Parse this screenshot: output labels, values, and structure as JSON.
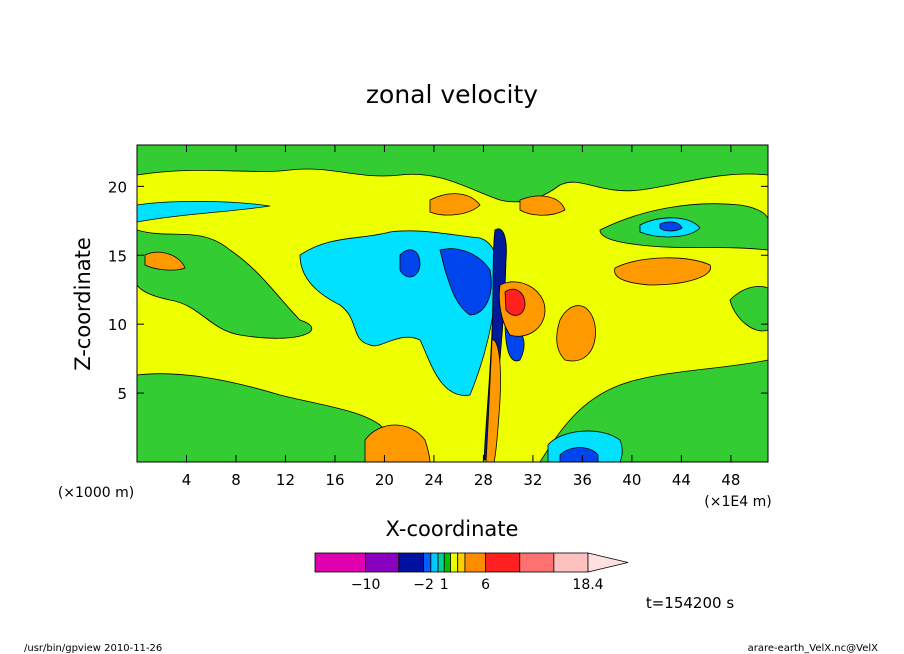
{
  "chart_data": {
    "type": "heatmap",
    "title": "zonal velocity",
    "xlabel": "X-coordinate",
    "ylabel": "Z-coordinate",
    "x_unit": "(×1E4 m)",
    "y_unit": "(×1000 m)",
    "x_ticks": [
      "4",
      "8",
      "12",
      "16",
      "20",
      "24",
      "28",
      "32",
      "36",
      "40",
      "44",
      "48"
    ],
    "x_tick_values": [
      4,
      8,
      12,
      16,
      20,
      24,
      28,
      32,
      36,
      40,
      44,
      48
    ],
    "y_ticks": [
      "5",
      "10",
      "15",
      "20"
    ],
    "y_tick_values": [
      5,
      10,
      15,
      20
    ],
    "xlim": [
      0,
      51
    ],
    "ylim": [
      0,
      23
    ],
    "colorbar": {
      "levels": [
        -14,
        -10,
        -6,
        -2,
        -1,
        0,
        1,
        2,
        3,
        4,
        6,
        10,
        14,
        18.4
      ],
      "colors": [
        "#e000b0",
        "#8a00c0",
        "#0010a0",
        "#0060ff",
        "#00c8ff",
        "#00d0a0",
        "#00c000",
        "#e8ff00",
        "#ffd000",
        "#ff8c00",
        "#ff2020",
        "#ff7070",
        "#ffc0c0",
        "#ffe0e0"
      ],
      "labels": [
        "−10",
        "−2",
        "1",
        "6",
        "18.4"
      ],
      "label_values": [
        -10,
        -2,
        1,
        6,
        18.4
      ]
    },
    "time_label": "t=154200 s",
    "grid": false
  },
  "footer": {
    "left": "/usr/bin/gpview   2010-11-26",
    "right": "arare-earth_VelX.nc@VelX"
  },
  "colors": {
    "green": "#33cc33",
    "yellow": "#eeff00",
    "cyan": "#00e0ff",
    "blue": "#0044ee",
    "navy": "#001a99",
    "orange": "#ff9900",
    "red": "#ff2020",
    "magenta": "#e000b0"
  }
}
